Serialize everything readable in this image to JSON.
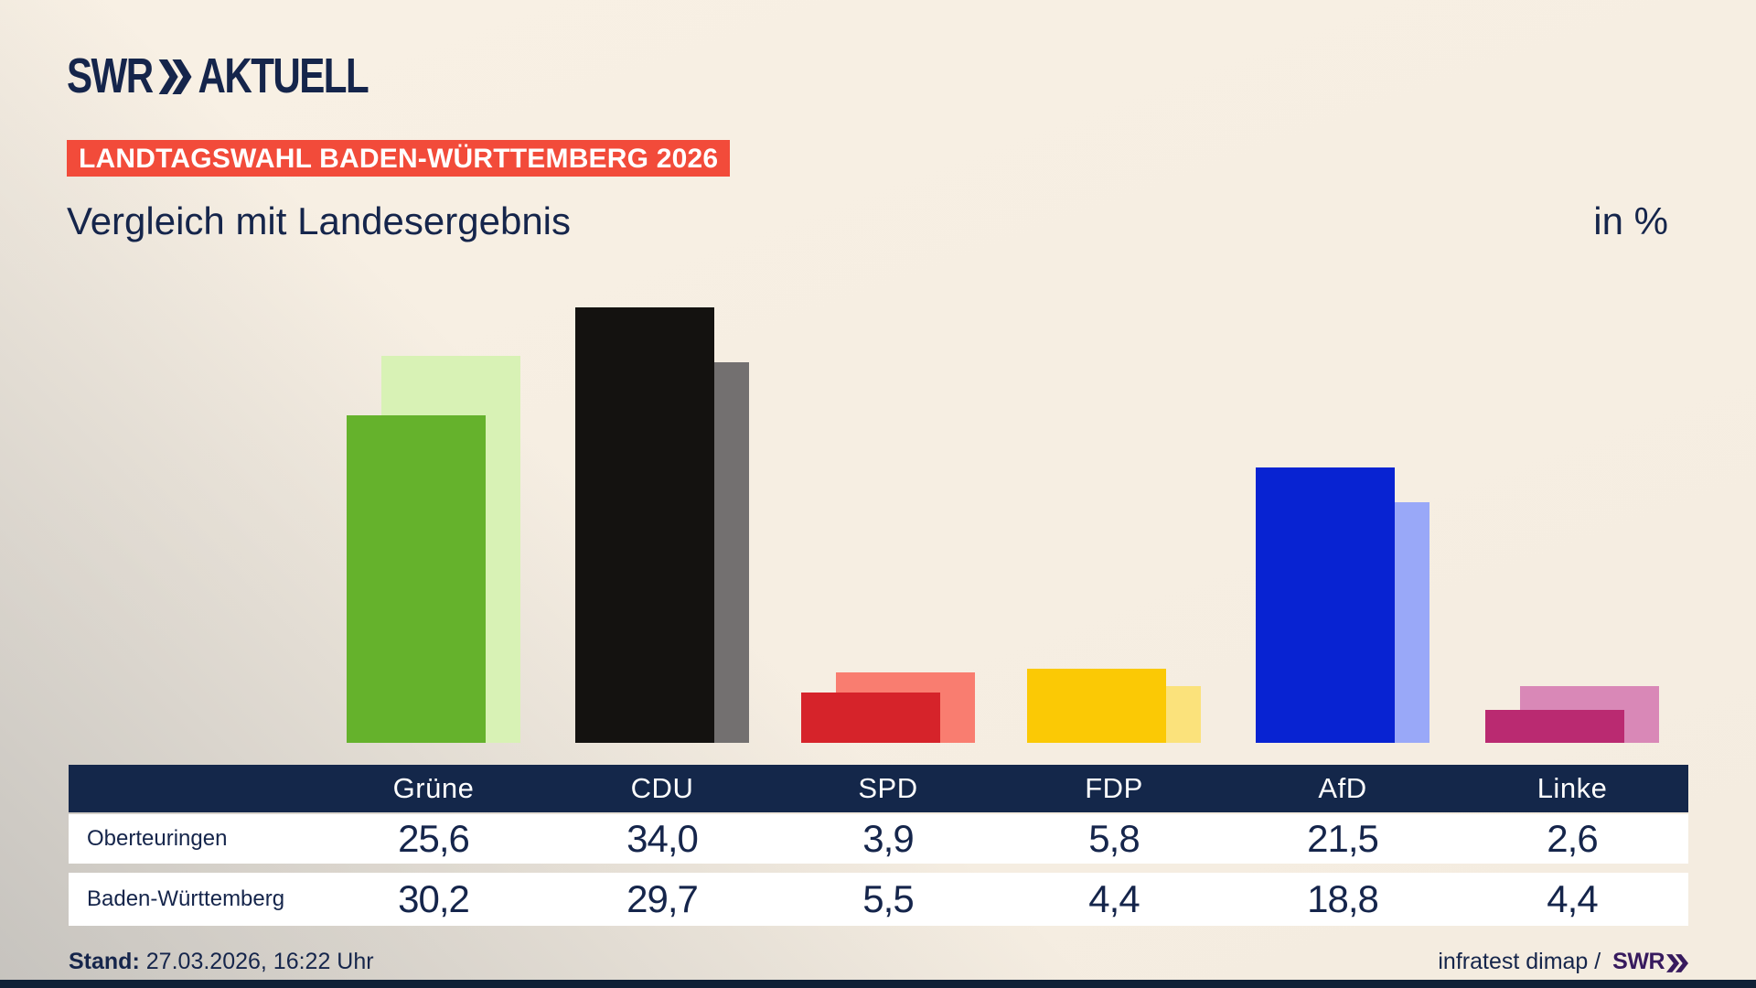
{
  "brand": {
    "logo_swr": "SWR",
    "logo_chevrons": "»",
    "logo_suffix": "AKTUELL"
  },
  "badge": {
    "text": "LANDTAGSWAHL BADEN-WÜRTTEMBERG 2026",
    "bg_color": "#f24b3a"
  },
  "title": "Vergleich mit Landesergebnis",
  "unit_label": "in %",
  "chart_data": {
    "type": "bar",
    "title": "Vergleich mit Landesergebnis",
    "unit": "%",
    "categories": [
      "Grüne",
      "CDU",
      "SPD",
      "FDP",
      "AfD",
      "Linke"
    ],
    "series": [
      {
        "name": "Oberteuringen",
        "role": "front",
        "values": [
          25.6,
          34.0,
          3.9,
          5.8,
          21.5,
          2.6
        ],
        "colors": [
          "#65b22c",
          "#141210",
          "#d6232a",
          "#fbc905",
          "#0823d2",
          "#ba2a71"
        ]
      },
      {
        "name": "Baden-Württemberg",
        "role": "back",
        "values": [
          30.2,
          29.7,
          5.5,
          4.4,
          18.8,
          4.4
        ],
        "colors": [
          "#d8f2b5",
          "#737070",
          "#f97d70",
          "#fbe27b",
          "#99a8f8",
          "#d988b7"
        ]
      }
    ],
    "ylim": [
      0,
      35
    ],
    "grid": false,
    "legend_position": "table-below"
  },
  "table": {
    "header": [
      "Grüne",
      "CDU",
      "SPD",
      "FDP",
      "AfD",
      "Linke"
    ],
    "rows": [
      {
        "label": "Oberteuringen",
        "values": [
          "25,6",
          "34,0",
          "3,9",
          "5,8",
          "21,5",
          "2,6"
        ]
      },
      {
        "label": "Baden-Württemberg",
        "values": [
          "30,2",
          "29,7",
          "5,5",
          "4,4",
          "18,8",
          "4,4"
        ]
      }
    ]
  },
  "footer": {
    "stand_label": "Stand:",
    "stand_value": "27.03.2026, 16:22 Uhr",
    "source_text": "infratest dimap / ",
    "source_brand": "SWR",
    "source_chevrons": "»"
  },
  "colors": {
    "navy_text": "#15254b",
    "table_header_bg": "#14274a",
    "badge_bg": "#f24b3a",
    "credit_brand_purple": "#371a5e",
    "bottom_bar": "#0f2036",
    "background_cream": "#f7efe3",
    "background_gray": "#c6c3be"
  }
}
